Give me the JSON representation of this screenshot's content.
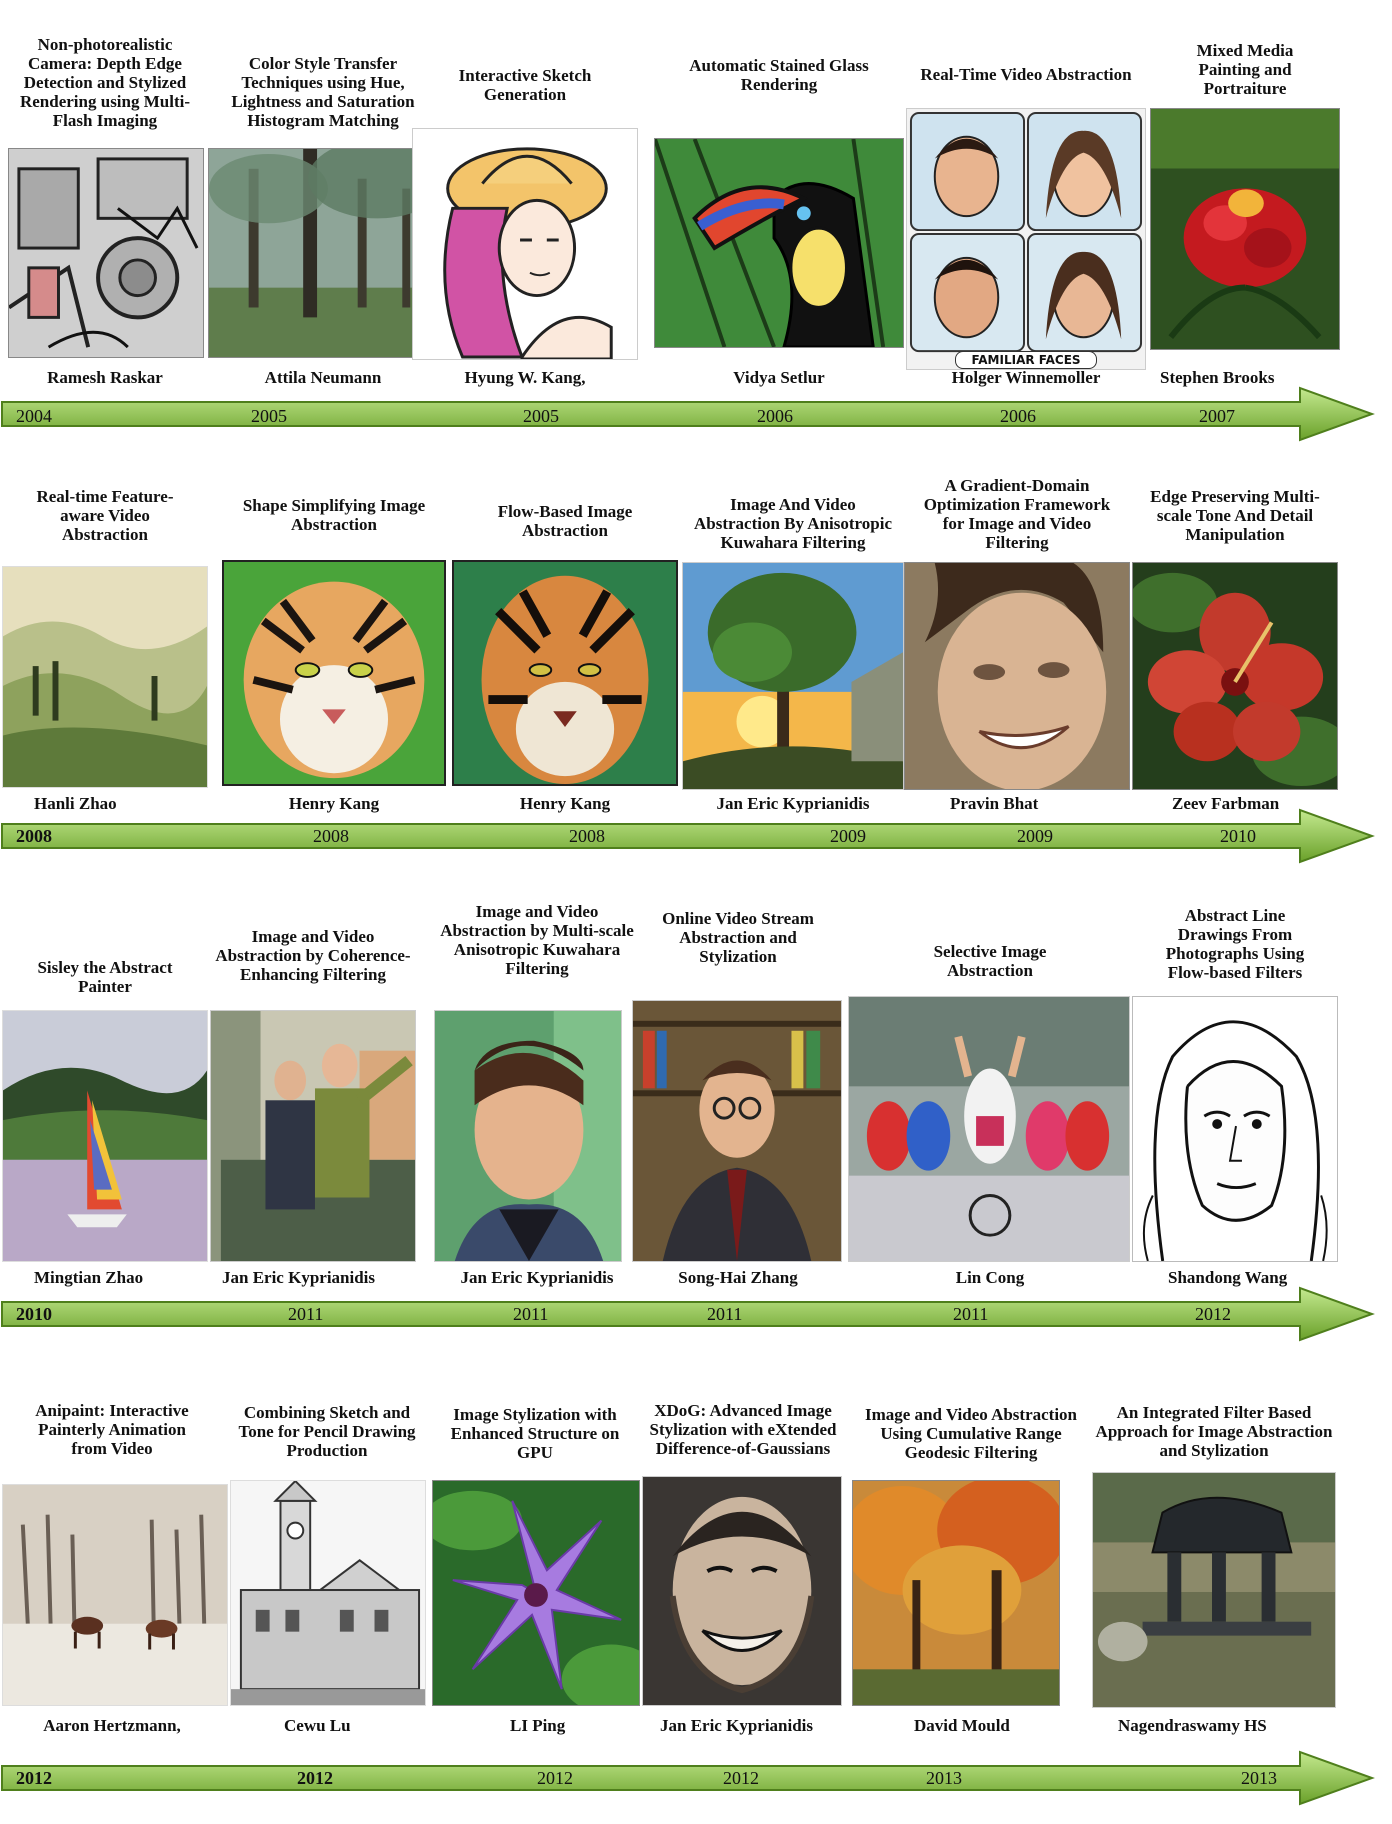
{
  "rows": [
    {
      "items": [
        {
          "title": "Non-photorealistic Camera: Depth Edge Detection and Stylized Rendering using Multi-Flash Imaging",
          "author": "Ramesh Raskar",
          "year": "2004",
          "year_bold": false,
          "image": "mechanical-line-art"
        },
        {
          "title": "Color Style Transfer Techniques using Hue, Lightness and Saturation Histogram Matching",
          "author": "Attila Neumann",
          "year": "2005",
          "year_bold": false,
          "image": "forest-photo"
        },
        {
          "title": "Interactive Sketch Generation",
          "author": "Hyung W. Kang,",
          "year": "2005",
          "year_bold": false,
          "image": "woman-hat-sketch"
        },
        {
          "title": "Automatic Stained Glass Rendering",
          "author": "Vidya Setlur",
          "year": "2006",
          "year_bold": false,
          "image": "toucan-stained-glass"
        },
        {
          "title": "Real-Time Video Abstraction",
          "author": "Holger Winnemoller",
          "year": "2006",
          "year_bold": false,
          "image": "familiar-faces",
          "caption": "FAMILIAR FACES"
        },
        {
          "title": "Mixed Media Painting and Portraiture",
          "author": "Stephen Brooks",
          "year": "2007",
          "year_bold": false,
          "image": "red-flower"
        }
      ]
    },
    {
      "items": [
        {
          "title": "Real-time Feature-aware Video Abstraction",
          "author": "Hanli Zhao",
          "year": "2008",
          "year_bold": true,
          "image": "landscape-painting"
        },
        {
          "title": "Shape Simplifying Image Abstraction",
          "author": "Henry Kang",
          "year": "2008",
          "year_bold": false,
          "image": "tiger-abstract"
        },
        {
          "title": "Flow-Based Image Abstraction",
          "author": "Henry Kang",
          "year": "2008",
          "year_bold": false,
          "image": "tiger-flow"
        },
        {
          "title": "Image And Video Abstraction By Anisotropic Kuwahara Filtering",
          "author": "Jan Eric Kyprianidis",
          "year": "2009",
          "year_bold": false,
          "image": "tree-sunset"
        },
        {
          "title": "A Gradient-Domain Optimization Framework for Image and Video Filtering",
          "author": "Pravin Bhat",
          "year": "2009",
          "year_bold": false,
          "image": "smiling-face"
        },
        {
          "title": "Edge Preserving Multi-scale Tone And Detail Manipulation",
          "author": "Zeev Farbman",
          "year": "2010",
          "year_bold": false,
          "image": "hibiscus"
        }
      ]
    },
    {
      "items": [
        {
          "title": "Sisley the Abstract Painter",
          "author": "Mingtian Zhao",
          "year": "2010",
          "year_bold": true,
          "image": "sailboat-painting"
        },
        {
          "title": "Image and Video Abstraction by Coherence-Enhancing Filtering",
          "author": "Jan Eric Kyprianidis",
          "year": "2011",
          "year_bold": false,
          "image": "balcony-people"
        },
        {
          "title": "Image and Video Abstraction by Multi-scale Anisotropic Kuwahara Filtering",
          "author": "Jan Eric Kyprianidis",
          "year": "2011",
          "year_bold": false,
          "image": "boy-portrait"
        },
        {
          "title": "Online Video Stream Abstraction and Stylization",
          "author": "Song-Hai Zhang",
          "year": "2011",
          "year_bold": false,
          "image": "man-bookshelf"
        },
        {
          "title": "Selective Image Abstraction",
          "author": "Lin Cong",
          "year": "2011",
          "year_bold": false,
          "image": "cyclists"
        },
        {
          "title": "Abstract Line Drawings From Photographs Using Flow-based Filters",
          "author": "Shandong Wang",
          "year": "2012",
          "year_bold": false,
          "image": "face-line-drawing"
        }
      ]
    },
    {
      "items": [
        {
          "title": "Anipaint: Interactive Painterly Animation from Video",
          "author": "Aaron Hertzmann,",
          "year": "2012",
          "year_bold": true,
          "image": "horses-field"
        },
        {
          "title": "Combining Sketch and Tone for Pencil Drawing Production",
          "author": "Cewu Lu",
          "year": "2012",
          "year_bold": true,
          "image": "building-pencil"
        },
        {
          "title": "Image Stylization with Enhanced Structure on GPU",
          "author": "LI Ping",
          "year": "2012",
          "year_bold": false,
          "image": "purple-flower"
        },
        {
          "title": "XDoG: Advanced Image Stylization with eXtended Difference-of-Gaussians",
          "author": "Jan Eric Kyprianidis",
          "year": "2012",
          "year_bold": false,
          "image": "man-smiling-bw"
        },
        {
          "title": "Image and Video Abstraction Using Cumulative Range Geodesic Filtering",
          "author": "David Mould",
          "year": "2013",
          "year_bold": false,
          "image": "autumn-trees"
        },
        {
          "title": "An Integrated Filter Based Approach for Image Abstraction and Stylization",
          "author": "Nagendraswamy HS",
          "year": "2013",
          "year_bold": false,
          "image": "pavilion-pond"
        }
      ]
    }
  ],
  "colors": {
    "arrow_light": "#b6e07a",
    "arrow_dark": "#6aa12a",
    "arrow_edge": "#4f7f1c"
  }
}
